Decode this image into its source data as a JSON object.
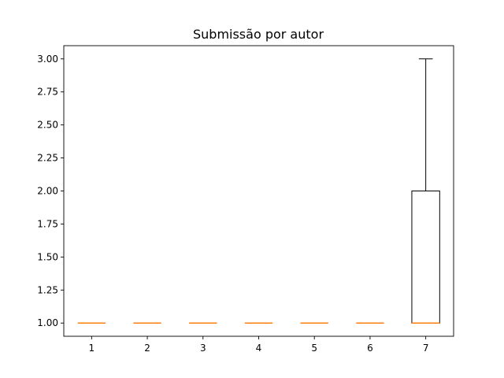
{
  "chart_data": {
    "type": "box",
    "title": "Submissão por autor",
    "xlabel": "",
    "ylabel": "",
    "ylim": [
      0.9,
      3.1
    ],
    "y_ticks": [
      1.0,
      1.25,
      1.5,
      1.75,
      2.0,
      2.25,
      2.5,
      2.75,
      3.0
    ],
    "y_tick_labels": [
      "1.00",
      "1.25",
      "1.50",
      "1.75",
      "2.00",
      "2.25",
      "2.50",
      "2.75",
      "3.00"
    ],
    "categories": [
      "1",
      "2",
      "3",
      "4",
      "5",
      "6",
      "7"
    ],
    "boxes": [
      {
        "label": "1",
        "whisker_low": 1,
        "q1": 1,
        "median": 1,
        "q3": 1,
        "whisker_high": 1
      },
      {
        "label": "2",
        "whisker_low": 1,
        "q1": 1,
        "median": 1,
        "q3": 1,
        "whisker_high": 1
      },
      {
        "label": "3",
        "whisker_low": 1,
        "q1": 1,
        "median": 1,
        "q3": 1,
        "whisker_high": 1
      },
      {
        "label": "4",
        "whisker_low": 1,
        "q1": 1,
        "median": 1,
        "q3": 1,
        "whisker_high": 1
      },
      {
        "label": "5",
        "whisker_low": 1,
        "q1": 1,
        "median": 1,
        "q3": 1,
        "whisker_high": 1
      },
      {
        "label": "6",
        "whisker_low": 1,
        "q1": 1,
        "median": 1,
        "q3": 1,
        "whisker_high": 1
      },
      {
        "label": "7",
        "whisker_low": 1,
        "q1": 1,
        "median": 1,
        "q3": 2,
        "whisker_high": 3
      }
    ],
    "grid": false,
    "colors": {
      "box": "#000000",
      "median": "#ff7f0e"
    }
  }
}
